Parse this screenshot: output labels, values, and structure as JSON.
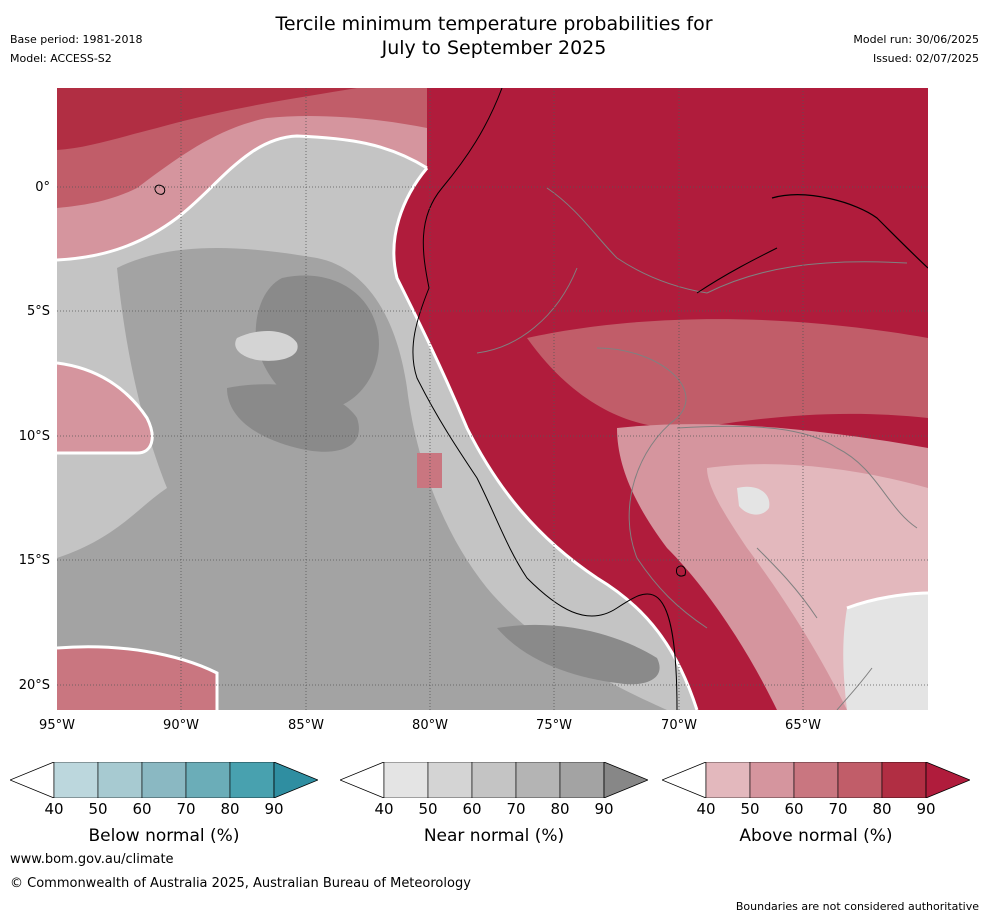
{
  "header": {
    "title_line1": "Tercile minimum temperature probabilities for",
    "title_line2": "July to September 2025",
    "base_period": "Base period: 1981-2018",
    "model": "Model: ACCESS-S2",
    "model_run": "Model run: 30/06/2025",
    "issued": "Issued: 02/07/2025"
  },
  "map": {
    "lat_labels": [
      "0°",
      "5°S",
      "10°S",
      "15°S",
      "20°S"
    ],
    "lon_labels": [
      "95°W",
      "90°W",
      "85°W",
      "80°W",
      "75°W",
      "70°W",
      "65°W"
    ]
  },
  "colorbars": [
    {
      "label": "Below normal (%)",
      "ticks": [
        "40",
        "50",
        "60",
        "70",
        "80",
        "90"
      ],
      "colors": [
        "#ffffff",
        "#bcd7dd",
        "#a7cad1",
        "#8ab8c2",
        "#6badb8",
        "#48a1af",
        "#2f8ea1"
      ]
    },
    {
      "label": "Near normal (%)",
      "ticks": [
        "40",
        "50",
        "60",
        "70",
        "80",
        "90"
      ],
      "colors": [
        "#ffffff",
        "#e4e4e4",
        "#d4d4d4",
        "#c4c4c4",
        "#b4b4b4",
        "#a3a3a3",
        "#878787"
      ]
    },
    {
      "label": "Above normal (%)",
      "ticks": [
        "40",
        "50",
        "60",
        "70",
        "80",
        "90"
      ],
      "colors": [
        "#ffffff",
        "#e3b8bd",
        "#d5959e",
        "#c97680",
        "#c15d69",
        "#b12e43",
        "#b01c3c"
      ]
    }
  ],
  "footer": {
    "website": "www.bom.gov.au/climate",
    "copyright": "© Commonwealth of Australia 2025, Australian Bureau of Meteorology",
    "disclaimer": "Boundaries are not considered authoritative"
  }
}
